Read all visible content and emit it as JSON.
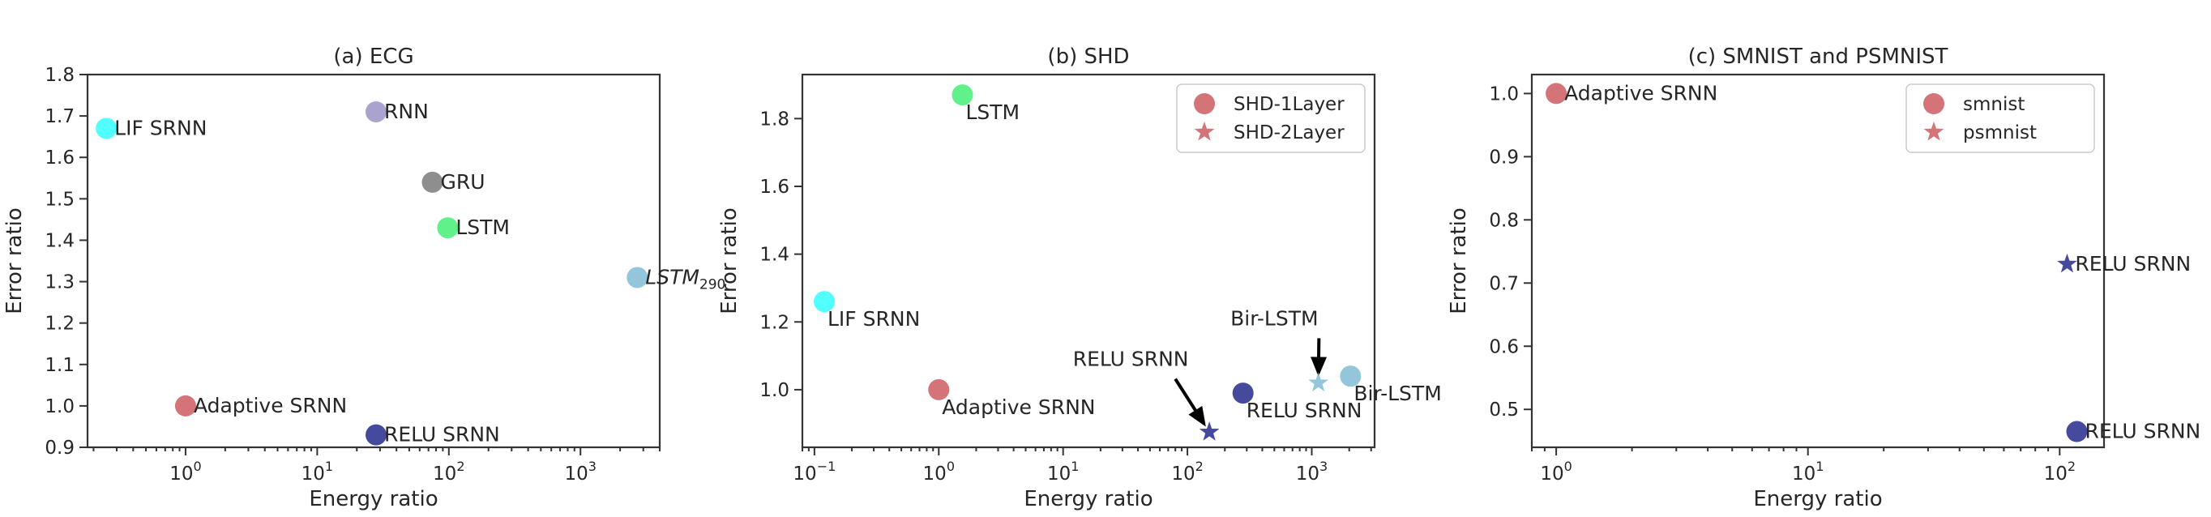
{
  "chart_data": [
    {
      "type": "scatter",
      "title": "(a) ECG",
      "xlabel": "Energy ratio",
      "ylabel": "Error ratio",
      "xscale": "log",
      "xlim": [
        0.18,
        4000
      ],
      "ylim": [
        0.9,
        1.8
      ],
      "xticks": [
        {
          "v": 1,
          "label": "10",
          "exp": "0"
        },
        {
          "v": 10,
          "label": "10",
          "exp": "1"
        },
        {
          "v": 100,
          "label": "10",
          "exp": "2"
        },
        {
          "v": 1000,
          "label": "10",
          "exp": "3"
        }
      ],
      "yticks": [
        {
          "v": 0.9,
          "label": "0.9"
        },
        {
          "v": 1.0,
          "label": "1.0"
        },
        {
          "v": 1.1,
          "label": "1.1"
        },
        {
          "v": 1.2,
          "label": "1.2"
        },
        {
          "v": 1.3,
          "label": "1.3"
        },
        {
          "v": 1.4,
          "label": "1.4"
        },
        {
          "v": 1.5,
          "label": "1.5"
        },
        {
          "v": 1.6,
          "label": "1.6"
        },
        {
          "v": 1.7,
          "label": "1.7"
        },
        {
          "v": 1.8,
          "label": "1.8"
        }
      ],
      "points": [
        {
          "name": "LIF SRNN",
          "x": 0.25,
          "y": 1.67,
          "color": "#33ffff",
          "marker": "circle",
          "label_pos": "right"
        },
        {
          "name": "RNN",
          "x": 28,
          "y": 1.71,
          "color": "#9b93c8",
          "marker": "circle",
          "label_pos": "right"
        },
        {
          "name": "GRU",
          "x": 75,
          "y": 1.54,
          "color": "#7a7a7a",
          "marker": "circle",
          "label_pos": "right"
        },
        {
          "name": "LSTM",
          "x": 98,
          "y": 1.43,
          "color": "#44ee77",
          "marker": "circle",
          "label_pos": "right"
        },
        {
          "name": "LSTM",
          "sub": "290",
          "x": 2700,
          "y": 1.31,
          "color": "#80bcd3",
          "marker": "circle",
          "label_pos": "right",
          "italic": true
        },
        {
          "name": "Adaptive SRNN",
          "x": 1.0,
          "y": 1.0,
          "color": "#cc5a60",
          "marker": "circle",
          "label_pos": "right"
        },
        {
          "name": "RELU SRNN",
          "x": 28,
          "y": 0.93,
          "color": "#262a8c",
          "marker": "circle",
          "label_pos": "right"
        }
      ],
      "legend": [],
      "annotations": []
    },
    {
      "type": "scatter",
      "title": "(b) SHD",
      "xlabel": "Energy ratio",
      "ylabel": "Error ratio",
      "xscale": "log",
      "xlim": [
        0.08,
        3200
      ],
      "ylim": [
        0.83,
        1.93
      ],
      "xticks": [
        {
          "v": 0.1,
          "label": "10",
          "exp": "−1"
        },
        {
          "v": 1,
          "label": "10",
          "exp": "0"
        },
        {
          "v": 10,
          "label": "10",
          "exp": "1"
        },
        {
          "v": 100,
          "label": "10",
          "exp": "2"
        },
        {
          "v": 1000,
          "label": "10",
          "exp": "3"
        }
      ],
      "yticks": [
        {
          "v": 1.0,
          "label": "1.0"
        },
        {
          "v": 1.2,
          "label": "1.2"
        },
        {
          "v": 1.4,
          "label": "1.4"
        },
        {
          "v": 1.6,
          "label": "1.6"
        },
        {
          "v": 1.8,
          "label": "1.8"
        }
      ],
      "points": [
        {
          "name": "LSTM",
          "x": 1.55,
          "y": 1.87,
          "color": "#44ee77",
          "marker": "circle",
          "label_pos": "below-right"
        },
        {
          "name": "LIF SRNN",
          "x": 0.12,
          "y": 1.26,
          "color": "#33ffff",
          "marker": "circle",
          "label_pos": "below-right"
        },
        {
          "name": "Adaptive SRNN",
          "x": 1.0,
          "y": 1.0,
          "color": "#cc5a60",
          "marker": "circle",
          "label_pos": "below-right"
        },
        {
          "name": "RELU SRNN",
          "x": 280,
          "y": 0.99,
          "color": "#262a8c",
          "marker": "circle",
          "label_pos": "below-right"
        },
        {
          "name": "Bir-LSTM",
          "x": 2050,
          "y": 1.04,
          "color": "#80bcd3",
          "marker": "circle",
          "label_pos": "below-right"
        },
        {
          "name": "",
          "x": 150,
          "y": 0.875,
          "color": "#262a8c",
          "marker": "star",
          "label_pos": "none"
        },
        {
          "name": "",
          "x": 1130,
          "y": 1.02,
          "color": "#80bcd3",
          "marker": "star",
          "label_pos": "none"
        }
      ],
      "legend": [
        {
          "label": "SHD-1Layer",
          "marker": "circle"
        },
        {
          "label": "SHD-2Layer",
          "marker": "star"
        }
      ],
      "annotations": [
        {
          "text": "RELU SRNN",
          "text_x": 35,
          "text_y": 1.07,
          "target_x": 150,
          "target_y": 0.875
        },
        {
          "text": "Bir-LSTM",
          "text_x": 500,
          "text_y": 1.19,
          "target_x": 1130,
          "target_y": 1.02
        }
      ]
    },
    {
      "type": "scatter",
      "title": "(c) SMNIST and PSMNIST",
      "xlabel": "Energy ratio",
      "ylabel": "Error ratio",
      "xscale": "log",
      "xlim": [
        0.8,
        150
      ],
      "ylim": [
        0.44,
        1.03
      ],
      "xticks": [
        {
          "v": 1,
          "label": "10",
          "exp": "0"
        },
        {
          "v": 10,
          "label": "10",
          "exp": "1"
        },
        {
          "v": 100,
          "label": "10",
          "exp": "2"
        }
      ],
      "yticks": [
        {
          "v": 0.5,
          "label": "0.5"
        },
        {
          "v": 0.6,
          "label": "0.6"
        },
        {
          "v": 0.7,
          "label": "0.7"
        },
        {
          "v": 0.8,
          "label": "0.8"
        },
        {
          "v": 0.9,
          "label": "0.9"
        },
        {
          "v": 1.0,
          "label": "1.0"
        }
      ],
      "points": [
        {
          "name": "Adaptive SRNN",
          "x": 1.0,
          "y": 1.0,
          "color": "#cc5a60",
          "marker": "circle",
          "label_pos": "right"
        },
        {
          "name": "RELU SRNN",
          "x": 107,
          "y": 0.73,
          "color": "#262a8c",
          "marker": "star",
          "label_pos": "right"
        },
        {
          "name": "RELU SRNN",
          "x": 117,
          "y": 0.465,
          "color": "#262a8c",
          "marker": "circle",
          "label_pos": "right"
        }
      ],
      "legend": [
        {
          "label": "smnist",
          "marker": "circle"
        },
        {
          "label": "psmnist",
          "marker": "star"
        }
      ],
      "annotations": []
    }
  ],
  "legend_color": "#cc5a60"
}
